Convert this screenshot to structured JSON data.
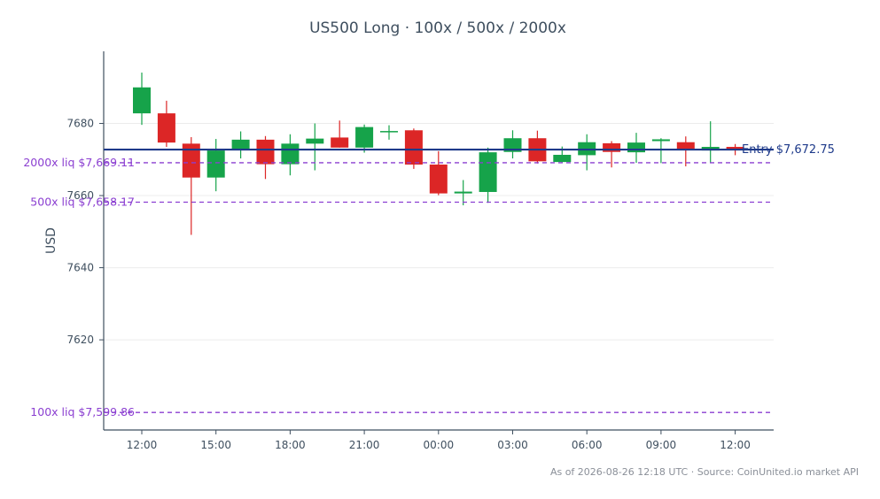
{
  "chart_data": {
    "type": "candlestick",
    "title": "US500 Long · 100x / 500x / 2000x",
    "ylabel": "USD",
    "ylim": [
      7595,
      7700
    ],
    "yticks": [
      7620,
      7640,
      7660,
      7680
    ],
    "xticks": [
      "12:00",
      "15:00",
      "18:00",
      "21:00",
      "00:00",
      "03:00",
      "06:00",
      "09:00",
      "12:00"
    ],
    "grid": "y",
    "colors": {
      "up": "#16a34a",
      "down": "#dc2626",
      "entry": "#1e3a8a",
      "liquidation": "#8b3fd1"
    },
    "candles": [
      {
        "time": "12:00",
        "open": 7682.8,
        "high": 7694.1,
        "low": 7679.6,
        "close": 7690.0
      },
      {
        "time": "13:00",
        "open": 7682.8,
        "high": 7686.3,
        "low": 7673.5,
        "close": 7674.7
      },
      {
        "time": "14:00",
        "open": 7674.4,
        "high": 7676.2,
        "low": 7649.1,
        "close": 7665.0
      },
      {
        "time": "15:00",
        "open": 7665.0,
        "high": 7675.7,
        "low": 7661.2,
        "close": 7672.5
      },
      {
        "time": "16:00",
        "open": 7672.7,
        "high": 7677.8,
        "low": 7670.3,
        "close": 7675.5
      },
      {
        "time": "17:00",
        "open": 7675.5,
        "high": 7676.5,
        "low": 7664.6,
        "close": 7668.7
      },
      {
        "time": "18:00",
        "open": 7668.7,
        "high": 7677.0,
        "low": 7665.6,
        "close": 7674.4
      },
      {
        "time": "19:00",
        "open": 7674.4,
        "high": 7680.0,
        "low": 7667.0,
        "close": 7675.8
      },
      {
        "time": "20:00",
        "open": 7676.1,
        "high": 7680.8,
        "low": 7673.3,
        "close": 7673.3
      },
      {
        "time": "21:00",
        "open": 7673.3,
        "high": 7679.7,
        "low": 7671.9,
        "close": 7679.0
      },
      {
        "time": "22:00",
        "open": 7677.7,
        "high": 7679.5,
        "low": 7675.5,
        "close": 7677.9
      },
      {
        "time": "23:00",
        "open": 7678.1,
        "high": 7678.6,
        "low": 7667.4,
        "close": 7668.6
      },
      {
        "time": "00:00",
        "open": 7668.6,
        "high": 7672.3,
        "low": 7660.1,
        "close": 7660.6
      },
      {
        "time": "01:00",
        "open": 7660.6,
        "high": 7664.3,
        "low": 7657.3,
        "close": 7661.1
      },
      {
        "time": "02:00",
        "open": 7661.0,
        "high": 7673.3,
        "low": 7658.0,
        "close": 7672.0
      },
      {
        "time": "03:00",
        "open": 7672.1,
        "high": 7678.1,
        "low": 7670.3,
        "close": 7675.9
      },
      {
        "time": "04:00",
        "open": 7675.9,
        "high": 7678.0,
        "low": 7668.9,
        "close": 7669.5
      },
      {
        "time": "05:00",
        "open": 7669.3,
        "high": 7673.6,
        "low": 7669.1,
        "close": 7671.3
      },
      {
        "time": "06:00",
        "open": 7671.2,
        "high": 7677.0,
        "low": 7667.0,
        "close": 7674.8
      },
      {
        "time": "07:00",
        "open": 7674.5,
        "high": 7675.1,
        "low": 7667.8,
        "close": 7672.1
      },
      {
        "time": "08:00",
        "open": 7672.0,
        "high": 7677.4,
        "low": 7669.1,
        "close": 7674.7
      },
      {
        "time": "09:00",
        "open": 7675.1,
        "high": 7675.9,
        "low": 7669.0,
        "close": 7675.6
      },
      {
        "time": "10:00",
        "open": 7674.8,
        "high": 7676.4,
        "low": 7668.1,
        "close": 7672.7
      },
      {
        "time": "11:00",
        "open": 7672.5,
        "high": 7680.6,
        "low": 7669.2,
        "close": 7673.5
      },
      {
        "time": "12:00",
        "open": 7673.5,
        "high": 7674.3,
        "low": 7671.2,
        "close": 7672.6
      }
    ],
    "entry": {
      "label": "Entry $7,672.75",
      "price": 7672.75
    },
    "liquidations": [
      {
        "label": "2000x liq $7,669.11",
        "price": 7669.11
      },
      {
        "label": "500x liq $7,658.17",
        "price": 7658.17
      },
      {
        "label": "100x liq $7,599.86",
        "price": 7599.86
      }
    ],
    "footer": "As of 2026-08-26 12:18 UTC · Source: CoinUnited.io market API"
  }
}
